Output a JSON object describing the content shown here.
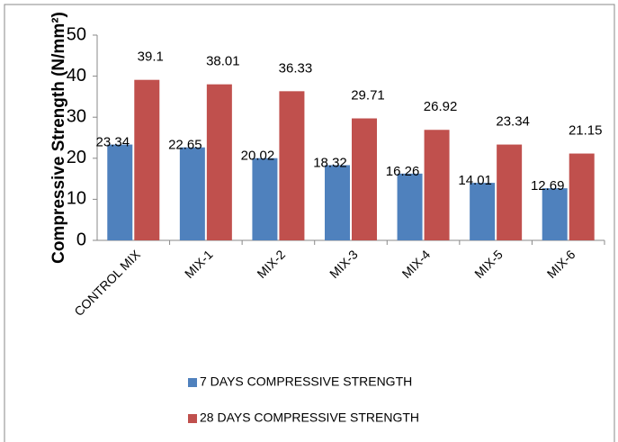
{
  "chart_data": {
    "type": "bar",
    "y_axis_label": "Compressive Strength (N/mm²)",
    "categories": [
      "CONTROL MIX",
      "MIX-1",
      "MIX-2",
      "MIX-3",
      "MIX-4",
      "MIX-5",
      "MIX-6"
    ],
    "series": [
      {
        "name": "7 DAYS COMPRESSIVE STRENGTH",
        "color": "#4f81bd",
        "values": [
          23.34,
          22.65,
          20.02,
          18.32,
          16.26,
          14.01,
          12.69
        ]
      },
      {
        "name": "28 DAYS COMPRESSIVE STRENGTH",
        "color": "#c0504d",
        "values": [
          39.1,
          38.01,
          36.33,
          29.71,
          26.92,
          23.34,
          21.15
        ]
      }
    ],
    "ylim": [
      0,
      50
    ],
    "yticks": [
      0,
      10,
      20,
      30,
      40,
      50
    ],
    "grid": false,
    "legend": "bottom"
  }
}
